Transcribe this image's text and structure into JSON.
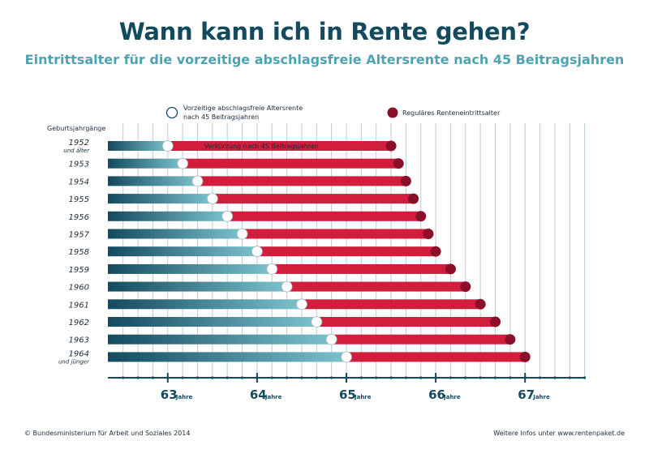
{
  "title": "Wann kann ich in Rente gehen?",
  "subtitle": "Eintrittsalter für die vorzeitige abschlagsfreie Altersrente nach 45 Beitragsjahren",
  "footer": {
    "left": "© Bundesministerium für Arbeit und Soziales 2014",
    "right": "Weitere Infos unter www.rentenpaket.de"
  },
  "colors": {
    "teal_dark": "#134a5e",
    "teal_light": "#7cc2cc",
    "red": "#d11e3c",
    "red_dark": "#8c0f2a"
  },
  "chart_data": {
    "type": "bar",
    "legend": {
      "open_marker_label_line1": "Vorzeitige abschlagsfreie Altersrente",
      "open_marker_label_line2": "nach 45 Beitragsjahren",
      "filled_marker_label": "Reguläres Renteneintrittsalter"
    },
    "y_header": "Geburtsjahrgänge",
    "annotation": "Verkürzung nach 45 Beitragsjahren",
    "x_unit": "Jahre",
    "xlim": [
      62.33,
      67.67
    ],
    "x_ticks": [
      63,
      64,
      65,
      66,
      67
    ],
    "rows": [
      {
        "year": "1952",
        "sub": "und älter",
        "early": 63.0,
        "regular": 65.5
      },
      {
        "year": "1953",
        "sub": "",
        "early": 63.1667,
        "regular": 65.5833
      },
      {
        "year": "1954",
        "sub": "",
        "early": 63.3333,
        "regular": 65.6667
      },
      {
        "year": "1955",
        "sub": "",
        "early": 63.5,
        "regular": 65.75
      },
      {
        "year": "1956",
        "sub": "",
        "early": 63.6667,
        "regular": 65.8333
      },
      {
        "year": "1957",
        "sub": "",
        "early": 63.8333,
        "regular": 65.9167
      },
      {
        "year": "1958",
        "sub": "",
        "early": 64.0,
        "regular": 66.0
      },
      {
        "year": "1959",
        "sub": "",
        "early": 64.1667,
        "regular": 66.1667
      },
      {
        "year": "1960",
        "sub": "",
        "early": 64.3333,
        "regular": 66.3333
      },
      {
        "year": "1961",
        "sub": "",
        "early": 64.5,
        "regular": 66.5
      },
      {
        "year": "1962",
        "sub": "",
        "early": 64.6667,
        "regular": 66.6667
      },
      {
        "year": "1963",
        "sub": "",
        "early": 64.8333,
        "regular": 66.8333
      },
      {
        "year": "1964",
        "sub": "und jünger",
        "early": 65.0,
        "regular": 67.0
      }
    ]
  }
}
